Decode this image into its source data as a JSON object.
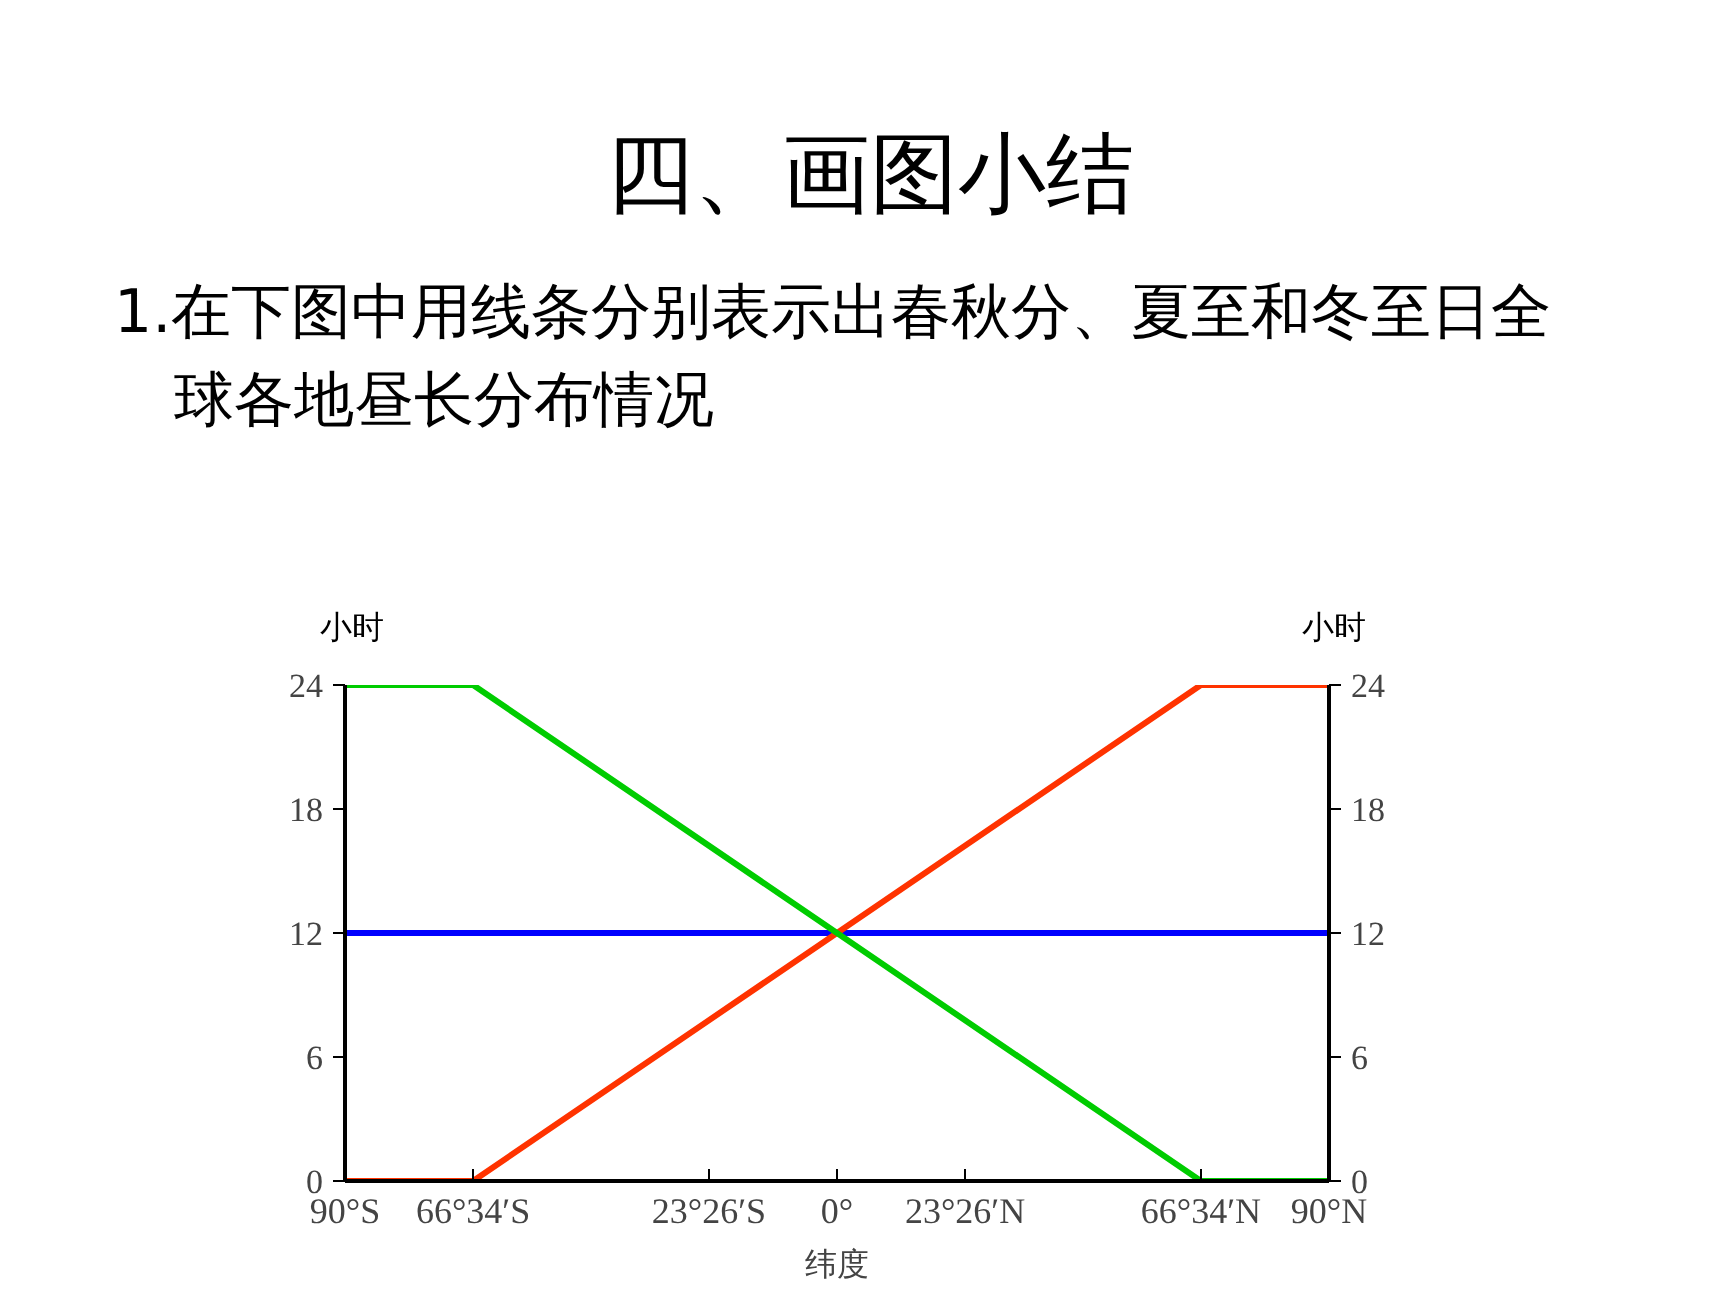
{
  "chart_data": {
    "type": "line",
    "title": "四、画图小结",
    "subtitle": "1.在下图中用线条分别表示出春秋分、夏至和冬至日全球各地昼长分布情况",
    "xlabel": "纬度",
    "ylabel": "小时",
    "y2label": "小时",
    "xlim": [
      -90,
      90
    ],
    "xticks": [
      {
        "value": -90,
        "label": "90°S"
      },
      {
        "value": -66.57,
        "label": "66°34′S"
      },
      {
        "value": -23.43,
        "label": "23°26′S"
      },
      {
        "value": 0,
        "label": "0°"
      },
      {
        "value": 23.43,
        "label": "23°26′N"
      },
      {
        "value": 66.57,
        "label": "66°34′N"
      },
      {
        "value": 90,
        "label": "90°N"
      }
    ],
    "ylim": [
      0,
      24
    ],
    "yticks": [
      0,
      6,
      12,
      18,
      24
    ],
    "y2lim": [
      0,
      24
    ],
    "y2ticks": [
      0,
      6,
      12,
      18,
      24
    ],
    "grid": false,
    "marker": "none",
    "line_style": "solid",
    "series": [
      {
        "color": "#0000ff",
        "x": [
          -90,
          90
        ],
        "values": [
          12,
          12
        ]
      },
      {
        "color": "#ff3300",
        "x": [
          -90,
          -66.57,
          66.57,
          90
        ],
        "values": [
          0,
          0,
          24,
          24
        ]
      },
      {
        "color": "#00cc00",
        "x": [
          -90,
          -66.57,
          66.57,
          90
        ],
        "values": [
          24,
          24,
          0,
          0
        ]
      }
    ]
  }
}
